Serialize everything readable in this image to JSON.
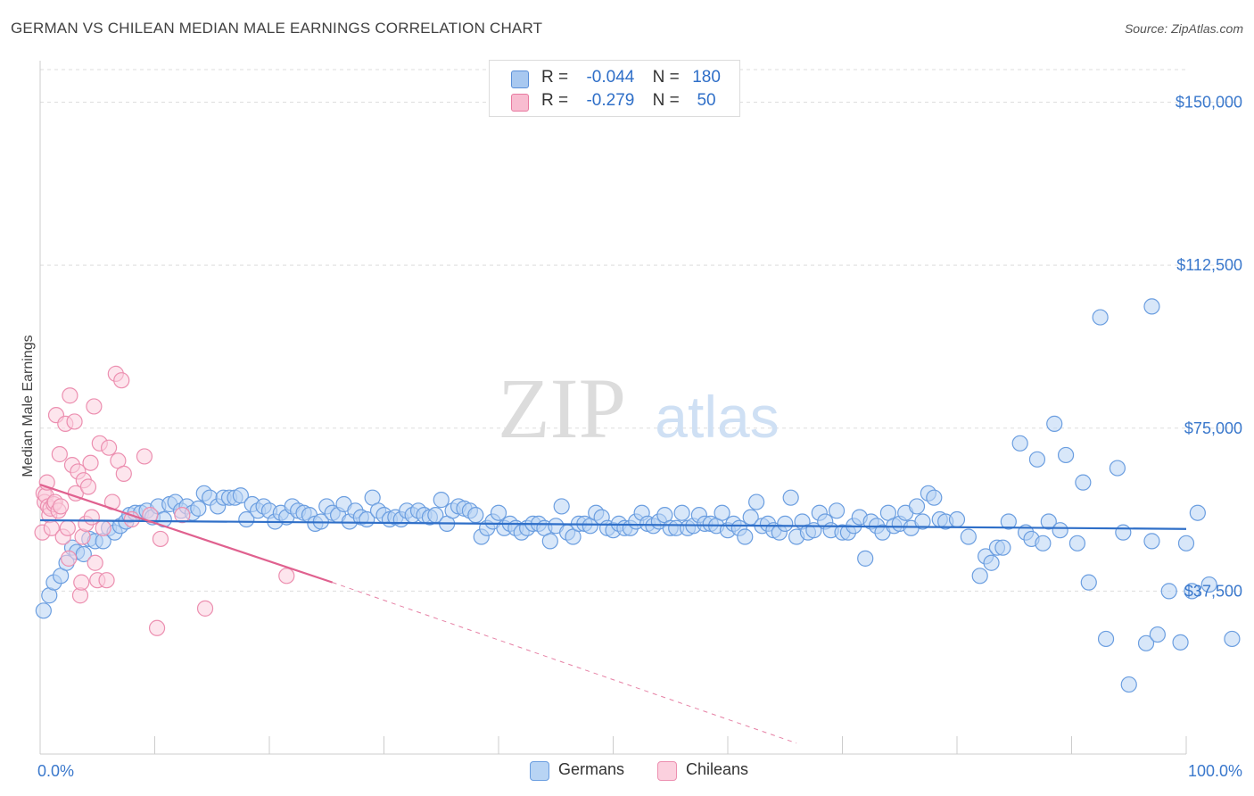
{
  "title": "GERMAN VS CHILEAN MEDIAN MALE EARNINGS CORRELATION CHART",
  "source": "Source: ZipAtlas.com",
  "watermark": {
    "zip": "ZIP",
    "atlas": "atlas"
  },
  "legend": {
    "rows": [
      {
        "r_label": "R =",
        "r_value": "-0.044",
        "n_label": "N =",
        "n_value": "180",
        "color": "#a8c8f0",
        "edge": "#5a8fd8"
      },
      {
        "r_label": "R =",
        "r_value": "-0.279",
        "n_label": "N =",
        "n_value": "50",
        "color": "#f8bcd0",
        "edge": "#e87aa0"
      }
    ]
  },
  "bottom_legend": [
    {
      "label": "Germans",
      "color": "#b8d4f4",
      "edge": "#6b9ee0"
    },
    {
      "label": "Chileans",
      "color": "#fbd0de",
      "edge": "#ec8fb0"
    }
  ],
  "chart_data": {
    "type": "scatter",
    "title": "GERMAN VS CHILEAN MEDIAN MALE EARNINGS CORRELATION CHART",
    "xlabel": "",
    "ylabel": "Median Male Earnings",
    "xlim": [
      0,
      100
    ],
    "ylim": [
      0,
      157500
    ],
    "x_tick_labels": [
      "0.0%",
      "100.0%"
    ],
    "y_ticks": [
      {
        "value": 37500,
        "label": "$37,500"
      },
      {
        "value": 75000,
        "label": "$75,000"
      },
      {
        "value": 112500,
        "label": "$112,500"
      },
      {
        "value": 150000,
        "label": "$150,000"
      }
    ],
    "grid": true,
    "series": [
      {
        "name": "Germans",
        "color": "#6b9ee0",
        "fill": "#b8d4f4",
        "trend": {
          "x0": 0,
          "y0": 53800,
          "x1": 100,
          "y1": 51800,
          "color": "#2f6fc8"
        },
        "points": [
          [
            0.3,
            33000
          ],
          [
            0.8,
            36500
          ],
          [
            1.2,
            39500
          ],
          [
            1.8,
            41000
          ],
          [
            2.3,
            44000
          ],
          [
            2.8,
            47500
          ],
          [
            3.2,
            46500
          ],
          [
            3.8,
            46000
          ],
          [
            4.3,
            49500
          ],
          [
            4.8,
            49000
          ],
          [
            5.5,
            49000
          ],
          [
            6.0,
            52000
          ],
          [
            6.5,
            51000
          ],
          [
            7.0,
            52500
          ],
          [
            7.5,
            53500
          ],
          [
            7.8,
            55000
          ],
          [
            8.3,
            55500
          ],
          [
            8.8,
            55500
          ],
          [
            9.3,
            56000
          ],
          [
            9.8,
            54500
          ],
          [
            10.3,
            57000
          ],
          [
            10.8,
            54000
          ],
          [
            11.3,
            57500
          ],
          [
            11.8,
            58000
          ],
          [
            12.3,
            56000
          ],
          [
            12.8,
            57000
          ],
          [
            13.3,
            55500
          ],
          [
            13.8,
            56500
          ],
          [
            14.3,
            60000
          ],
          [
            14.8,
            59000
          ],
          [
            15.5,
            57000
          ],
          [
            16.0,
            59000
          ],
          [
            16.5,
            59000
          ],
          [
            17.0,
            59000
          ],
          [
            17.5,
            59500
          ],
          [
            18.0,
            54000
          ],
          [
            18.5,
            57500
          ],
          [
            19.0,
            56000
          ],
          [
            19.5,
            57000
          ],
          [
            20.0,
            56000
          ],
          [
            20.5,
            53500
          ],
          [
            21.0,
            55500
          ],
          [
            21.5,
            54500
          ],
          [
            22.0,
            57000
          ],
          [
            22.5,
            56000
          ],
          [
            23.0,
            55500
          ],
          [
            23.5,
            55000
          ],
          [
            24.0,
            53000
          ],
          [
            24.5,
            53500
          ],
          [
            25.0,
            57000
          ],
          [
            25.5,
            55500
          ],
          [
            26.0,
            55000
          ],
          [
            26.5,
            57500
          ],
          [
            27.0,
            53500
          ],
          [
            27.5,
            56000
          ],
          [
            28.0,
            54500
          ],
          [
            28.5,
            54000
          ],
          [
            29.0,
            59000
          ],
          [
            29.5,
            56000
          ],
          [
            30.0,
            55000
          ],
          [
            30.5,
            54000
          ],
          [
            31.0,
            54500
          ],
          [
            31.5,
            54000
          ],
          [
            32.0,
            56000
          ],
          [
            32.5,
            55000
          ],
          [
            33.0,
            56000
          ],
          [
            33.5,
            55000
          ],
          [
            34.0,
            54500
          ],
          [
            34.5,
            55000
          ],
          [
            35.0,
            58500
          ],
          [
            35.5,
            53000
          ],
          [
            36.0,
            56000
          ],
          [
            36.5,
            57000
          ],
          [
            37.0,
            56500
          ],
          [
            37.5,
            56000
          ],
          [
            38.0,
            55000
          ],
          [
            38.5,
            50000
          ],
          [
            39.0,
            52000
          ],
          [
            39.5,
            53500
          ],
          [
            40.0,
            55500
          ],
          [
            40.5,
            52000
          ],
          [
            41.0,
            53000
          ],
          [
            41.5,
            52000
          ],
          [
            42.0,
            51000
          ],
          [
            42.5,
            52000
          ],
          [
            43.0,
            53000
          ],
          [
            43.5,
            53000
          ],
          [
            44.0,
            52000
          ],
          [
            44.5,
            49000
          ],
          [
            45.0,
            52500
          ],
          [
            45.5,
            57000
          ],
          [
            46.0,
            51000
          ],
          [
            46.5,
            50000
          ],
          [
            47.0,
            53000
          ],
          [
            47.5,
            53000
          ],
          [
            48.0,
            52500
          ],
          [
            48.5,
            55500
          ],
          [
            49.0,
            54500
          ],
          [
            49.5,
            52000
          ],
          [
            50.0,
            51500
          ],
          [
            50.5,
            53000
          ],
          [
            51.0,
            52000
          ],
          [
            51.5,
            52000
          ],
          [
            52.0,
            53500
          ],
          [
            52.5,
            55500
          ],
          [
            53.0,
            53000
          ],
          [
            53.5,
            52500
          ],
          [
            54.0,
            53500
          ],
          [
            54.5,
            55000
          ],
          [
            55.0,
            52000
          ],
          [
            55.5,
            52000
          ],
          [
            56.0,
            55500
          ],
          [
            56.5,
            52000
          ],
          [
            57.0,
            52500
          ],
          [
            57.5,
            55000
          ],
          [
            58.0,
            53000
          ],
          [
            58.5,
            53000
          ],
          [
            59.0,
            52500
          ],
          [
            59.5,
            55500
          ],
          [
            60.0,
            51500
          ],
          [
            60.5,
            53000
          ],
          [
            61.0,
            52000
          ],
          [
            61.5,
            50000
          ],
          [
            62.0,
            54500
          ],
          [
            62.5,
            58000
          ],
          [
            63.0,
            52500
          ],
          [
            63.5,
            53000
          ],
          [
            64.0,
            51500
          ],
          [
            64.5,
            51000
          ],
          [
            65.0,
            53000
          ],
          [
            65.5,
            59000
          ],
          [
            66.0,
            50000
          ],
          [
            66.5,
            53500
          ],
          [
            67.0,
            51000
          ],
          [
            67.5,
            51500
          ],
          [
            68.0,
            55500
          ],
          [
            68.5,
            53500
          ],
          [
            69.0,
            51500
          ],
          [
            69.5,
            56000
          ],
          [
            70.0,
            51000
          ],
          [
            70.5,
            51000
          ],
          [
            71.0,
            52500
          ],
          [
            71.5,
            54500
          ],
          [
            72.0,
            45000
          ],
          [
            72.5,
            53500
          ],
          [
            73.0,
            52500
          ],
          [
            73.5,
            51000
          ],
          [
            74.0,
            55500
          ],
          [
            74.5,
            52500
          ],
          [
            75.0,
            53000
          ],
          [
            75.5,
            55500
          ],
          [
            76.0,
            52000
          ],
          [
            76.5,
            57000
          ],
          [
            77.0,
            53500
          ],
          [
            77.5,
            60000
          ],
          [
            78.0,
            59000
          ],
          [
            78.5,
            54000
          ],
          [
            79.0,
            53500
          ],
          [
            80.0,
            54000
          ],
          [
            81.0,
            50000
          ],
          [
            82.0,
            41000
          ],
          [
            82.5,
            45500
          ],
          [
            83.0,
            44000
          ],
          [
            83.5,
            47500
          ],
          [
            84.0,
            47500
          ],
          [
            84.5,
            53500
          ],
          [
            85.5,
            71500
          ],
          [
            86.0,
            51000
          ],
          [
            86.5,
            49500
          ],
          [
            87.0,
            67800
          ],
          [
            87.5,
            48500
          ],
          [
            88.0,
            53500
          ],
          [
            88.5,
            76000
          ],
          [
            89.0,
            51500
          ],
          [
            89.5,
            68800
          ],
          [
            90.5,
            48500
          ],
          [
            91.0,
            62500
          ],
          [
            91.5,
            39500
          ],
          [
            92.5,
            100500
          ],
          [
            93.0,
            26500
          ],
          [
            94.0,
            65800
          ],
          [
            94.5,
            51000
          ],
          [
            95.0,
            16000
          ],
          [
            96.5,
            25500
          ],
          [
            97.0,
            103000
          ],
          [
            97.0,
            49000
          ],
          [
            97.5,
            27500
          ],
          [
            98.5,
            37500
          ],
          [
            99.5,
            25700
          ],
          [
            100.0,
            48500
          ],
          [
            100.5,
            37500
          ],
          [
            101.0,
            55500
          ],
          [
            102.0,
            39000
          ],
          [
            104.0,
            26500
          ]
        ]
      },
      {
        "name": "Chileans",
        "color": "#ec8fb0",
        "fill": "#fbd0de",
        "trend": {
          "x0": 0,
          "y0": 62000,
          "x1": 25.5,
          "y1": 39500,
          "color": "#e0618f"
        },
        "trend_extension": {
          "x0": 25.5,
          "y0": 39500,
          "x1": 66,
          "y1": 2500
        },
        "points": [
          [
            0.2,
            51000
          ],
          [
            0.3,
            60000
          ],
          [
            0.4,
            58000
          ],
          [
            0.5,
            59500
          ],
          [
            0.6,
            62500
          ],
          [
            0.7,
            57000
          ],
          [
            0.8,
            55000
          ],
          [
            0.9,
            56500
          ],
          [
            1.0,
            52000
          ],
          [
            1.2,
            57500
          ],
          [
            1.3,
            58000
          ],
          [
            1.4,
            78000
          ],
          [
            1.6,
            56000
          ],
          [
            1.7,
            69000
          ],
          [
            1.8,
            57000
          ],
          [
            2.0,
            50000
          ],
          [
            2.2,
            76000
          ],
          [
            2.4,
            52000
          ],
          [
            2.5,
            45000
          ],
          [
            2.6,
            82500
          ],
          [
            2.8,
            66500
          ],
          [
            3.0,
            76500
          ],
          [
            3.1,
            60000
          ],
          [
            3.3,
            65000
          ],
          [
            3.5,
            36500
          ],
          [
            3.6,
            39500
          ],
          [
            3.7,
            50000
          ],
          [
            3.8,
            63000
          ],
          [
            4.0,
            53000
          ],
          [
            4.2,
            61500
          ],
          [
            4.4,
            67000
          ],
          [
            4.5,
            54500
          ],
          [
            4.7,
            80000
          ],
          [
            4.8,
            44000
          ],
          [
            5.0,
            40000
          ],
          [
            5.2,
            71500
          ],
          [
            5.5,
            52000
          ],
          [
            5.8,
            40000
          ],
          [
            6.0,
            70500
          ],
          [
            6.3,
            58000
          ],
          [
            6.6,
            87500
          ],
          [
            6.8,
            67500
          ],
          [
            7.1,
            86000
          ],
          [
            7.3,
            64500
          ],
          [
            8.0,
            54000
          ],
          [
            9.1,
            68500
          ],
          [
            9.6,
            55000
          ],
          [
            10.2,
            29000
          ],
          [
            10.5,
            49500
          ],
          [
            12.4,
            55000
          ],
          [
            14.4,
            33500
          ],
          [
            21.5,
            41000
          ]
        ]
      }
    ]
  }
}
